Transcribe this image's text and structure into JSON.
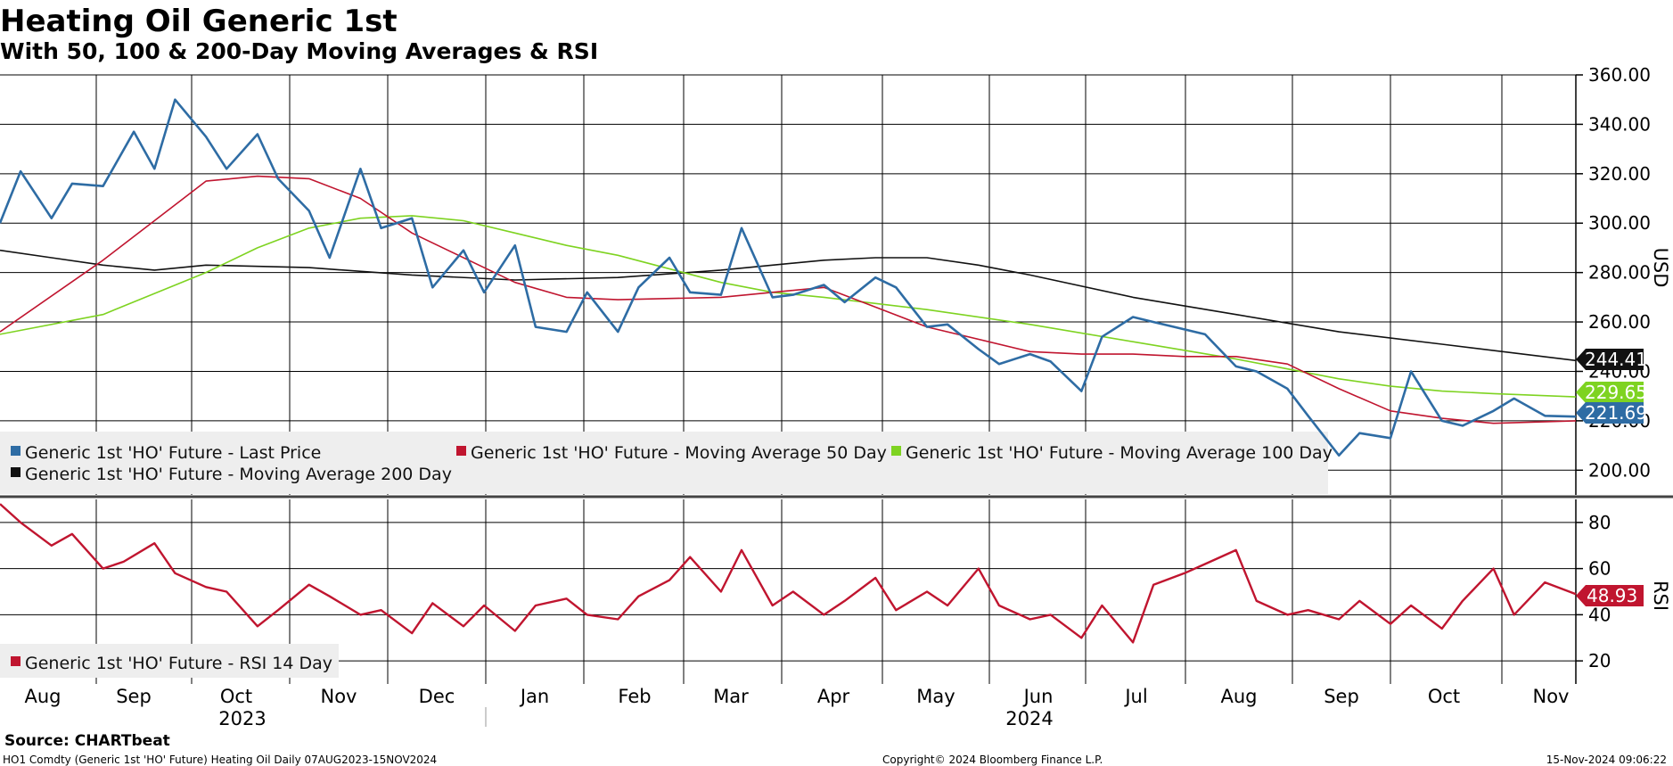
{
  "header": {
    "title": "Heating Oil Generic 1st",
    "subtitle": "With 50, 100 & 200-Day Moving Averages & RSI"
  },
  "colors": {
    "last_price": "#2e6ca4",
    "ma50": "#c0152f",
    "ma100": "#7ed321",
    "ma200": "#111111",
    "rsi": "#c0152f",
    "grid": "#000000",
    "legend_bg": "#eeeeee"
  },
  "price_axis": {
    "label": "USD",
    "ticks": [
      "360.00",
      "340.00",
      "320.00",
      "300.00",
      "280.00",
      "260.00",
      "240.00",
      "220.00",
      "200.00"
    ]
  },
  "rsi_axis": {
    "label": "RSI",
    "ticks": [
      "80",
      "60",
      "40",
      "20"
    ]
  },
  "x_axis": {
    "months": [
      "Aug",
      "Sep",
      "Oct",
      "Nov",
      "Dec",
      "Jan",
      "Feb",
      "Mar",
      "Apr",
      "May",
      "Jun",
      "Jul",
      "Aug",
      "Sep",
      "Oct",
      "Nov"
    ],
    "years": [
      "2023",
      "2024"
    ]
  },
  "legend": {
    "price_items": [
      "Generic 1st 'HO' Future - Last Price",
      "Generic 1st 'HO' Future - Moving Average 50 Day",
      "Generic 1st 'HO' Future - Moving Average 100 Day",
      "Generic 1st 'HO' Future - Moving Average 200 Day"
    ],
    "rsi_item": "Generic 1st 'HO' Future - RSI 14 Day"
  },
  "last_values": {
    "ma200": "244.41",
    "ma100": "229.65",
    "last_price": "221.69",
    "rsi": "48.93"
  },
  "footer": {
    "source": "Source: CHARTbeat",
    "ticker": "HO1 Comdty (Generic 1st 'HO' Future) Heating Oil  Daily 07AUG2023-15NOV2024",
    "copyright": "Copyright© 2024 Bloomberg Finance L.P.",
    "date": "15-Nov-2024 09:06:22"
  },
  "chart_data": [
    {
      "type": "line",
      "title": "Heating Oil Generic 1st",
      "ylabel": "USD",
      "ylim": [
        190,
        360
      ],
      "x_range": [
        "2023-08-07",
        "2024-11-15"
      ],
      "series": [
        {
          "name": "Generic 1st 'HO' Future - Last Price",
          "x": [
            0,
            0.2,
            0.5,
            0.7,
            1.0,
            1.3,
            1.5,
            1.7,
            2.0,
            2.2,
            2.5,
            2.7,
            3.0,
            3.2,
            3.5,
            3.7,
            4.0,
            4.2,
            4.5,
            4.7,
            5.0,
            5.2,
            5.5,
            5.7,
            6.0,
            6.2,
            6.5,
            6.7,
            7.0,
            7.2,
            7.5,
            7.7,
            8.0,
            8.2,
            8.5,
            8.7,
            9.0,
            9.2,
            9.5,
            9.7,
            10.0,
            10.2,
            10.5,
            10.7,
            11.0,
            11.2,
            11.5,
            11.7,
            12.0,
            12.2,
            12.5,
            12.7,
            13.0,
            13.2,
            13.5,
            13.7,
            14.0,
            14.2,
            14.5,
            14.7,
            15.0,
            15.3
          ],
          "values": [
            300,
            321,
            302,
            316,
            315,
            337,
            322,
            350,
            335,
            322,
            336,
            318,
            305,
            286,
            322,
            298,
            302,
            274,
            289,
            272,
            291,
            258,
            256,
            272,
            256,
            274,
            286,
            272,
            271,
            298,
            270,
            271,
            275,
            268,
            278,
            274,
            258,
            259,
            249,
            243,
            247,
            244,
            232,
            254,
            262,
            260,
            257,
            255,
            242,
            240,
            233,
            222,
            206,
            215,
            213,
            240,
            220,
            218,
            224,
            229,
            222,
            221.69
          ]
        },
        {
          "name": "Generic 1st 'HO' Future - Moving Average 50 Day",
          "x": [
            0,
            1.0,
            2.0,
            2.5,
            3.0,
            3.5,
            4.0,
            5.0,
            5.5,
            6.0,
            7.0,
            7.5,
            8.0,
            8.5,
            9.0,
            10.0,
            10.5,
            11.0,
            11.5,
            12.0,
            12.5,
            13.0,
            13.5,
            14.0,
            14.5,
            15.3
          ],
          "values": [
            256,
            285,
            317,
            319,
            318,
            310,
            296,
            276,
            270,
            269,
            270,
            272,
            274,
            266,
            258,
            248,
            247,
            247,
            246,
            246,
            243,
            233,
            224,
            221,
            219,
            220
          ]
        },
        {
          "name": "Generic 1st 'HO' Future - Moving Average 100 Day",
          "x": [
            0,
            1.0,
            2.0,
            2.5,
            3.0,
            3.5,
            4.0,
            4.5,
            5.0,
            5.5,
            6.0,
            7.0,
            7.5,
            8.0,
            9.0,
            10.0,
            11.0,
            12.0,
            12.5,
            13.0,
            13.5,
            14.0,
            14.5,
            15.3
          ],
          "values": [
            255,
            263,
            280,
            290,
            298,
            302,
            303,
            301,
            296,
            291,
            287,
            276,
            272,
            270,
            265,
            259,
            252,
            245,
            241,
            237,
            234,
            232,
            231,
            229.65
          ]
        },
        {
          "name": "Generic 1st 'HO' Future - Moving Average 200 Day",
          "x": [
            0,
            0.5,
            1.0,
            1.5,
            2.0,
            3.0,
            4.0,
            5.0,
            6.0,
            7.0,
            7.5,
            8.0,
            8.5,
            9.0,
            9.5,
            10.0,
            11.0,
            12.0,
            13.0,
            14.0,
            15.3
          ],
          "values": [
            289,
            286,
            283,
            281,
            283,
            282,
            279,
            277,
            278,
            281,
            283,
            285,
            286,
            286,
            283,
            279,
            270,
            263,
            256,
            251,
            244.41
          ]
        }
      ]
    },
    {
      "type": "line",
      "title": "RSI",
      "ylabel": "RSI",
      "ylim": [
        10,
        90
      ],
      "series": [
        {
          "name": "Generic 1st 'HO' Future - RSI 14 Day",
          "x": [
            0,
            0.2,
            0.5,
            0.7,
            1.0,
            1.2,
            1.5,
            1.7,
            2.0,
            2.2,
            2.5,
            2.7,
            3.0,
            3.2,
            3.5,
            3.7,
            4.0,
            4.2,
            4.5,
            4.7,
            5.0,
            5.2,
            5.5,
            5.7,
            6.0,
            6.2,
            6.5,
            6.7,
            7.0,
            7.2,
            7.5,
            7.7,
            8.0,
            8.2,
            8.5,
            8.7,
            9.0,
            9.2,
            9.5,
            9.7,
            10.0,
            10.2,
            10.5,
            10.7,
            11.0,
            11.2,
            11.5,
            11.7,
            12.0,
            12.2,
            12.5,
            12.7,
            13.0,
            13.2,
            13.5,
            13.7,
            14.0,
            14.2,
            14.5,
            14.7,
            15.0,
            15.3
          ],
          "values": [
            88,
            80,
            70,
            75,
            60,
            63,
            71,
            58,
            52,
            50,
            35,
            42,
            53,
            48,
            40,
            42,
            32,
            45,
            35,
            44,
            33,
            44,
            47,
            40,
            38,
            48,
            55,
            65,
            50,
            68,
            44,
            50,
            40,
            46,
            56,
            42,
            50,
            44,
            60,
            44,
            38,
            40,
            30,
            44,
            28,
            53,
            58,
            62,
            68,
            46,
            40,
            42,
            38,
            46,
            36,
            44,
            34,
            46,
            60,
            40,
            54,
            48.93
          ]
        }
      ]
    }
  ]
}
